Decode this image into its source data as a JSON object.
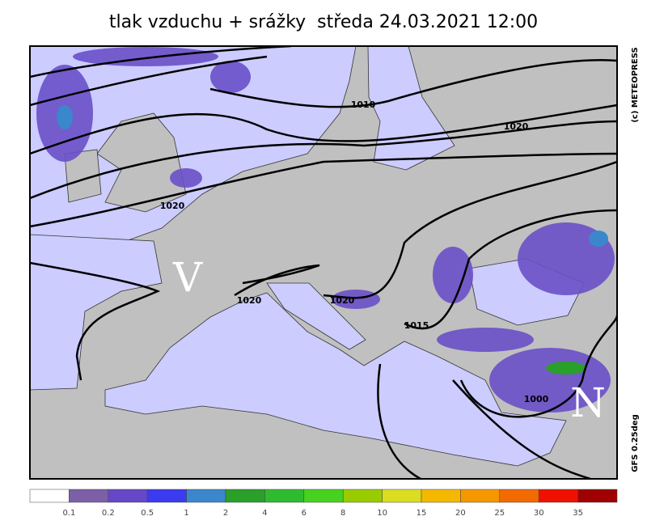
{
  "header": {
    "title": "tlak vzduchu + srážky  středa 24.03.2021 12:00"
  },
  "map": {
    "isobar_labels": [
      "1010",
      "1020",
      "1020",
      "1020",
      "1020",
      "1015",
      "1000"
    ],
    "pressure_centers": [
      "V",
      "N"
    ],
    "credit": "(c) METEOPRESS",
    "model": "GFS 0.25deg"
  },
  "legend": {
    "colors": [
      "#ffffff",
      "#7d5fa8",
      "#6647c8",
      "#3b3bf0",
      "#3a87cc",
      "#2aa02a",
      "#2fbb2f",
      "#46d21e",
      "#99cc00",
      "#dcdc22",
      "#f5b800",
      "#f59800",
      "#f26a00",
      "#ee1100",
      "#a00000"
    ],
    "labels": [
      0.1,
      0.2,
      0.5,
      1,
      2,
      4,
      6,
      8,
      10,
      15,
      20,
      25,
      30,
      35
    ]
  }
}
